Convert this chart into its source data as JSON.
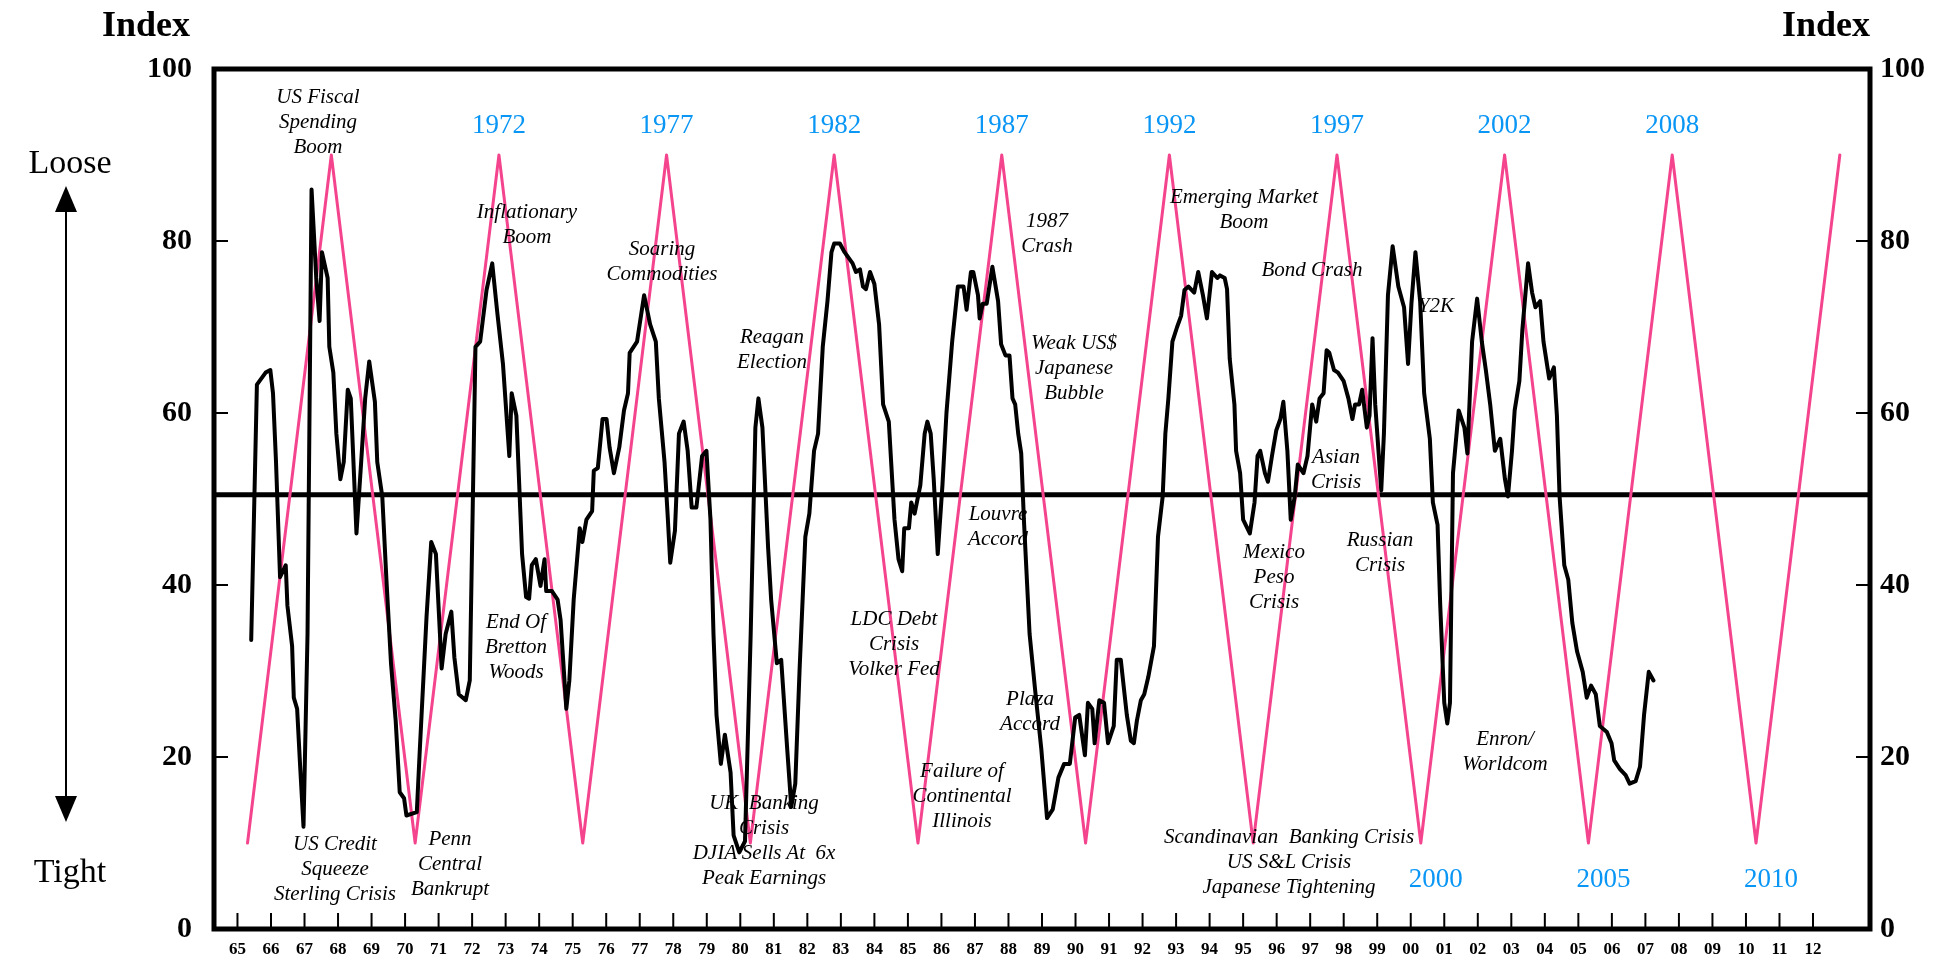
{
  "chart_data": {
    "type": "line",
    "ylabel": "Index",
    "y2label": "Index",
    "xlim": [
      1964.3,
      2013.7
    ],
    "ylim": [
      0,
      100
    ],
    "y2lim": [
      0,
      100
    ],
    "xticks": [
      {
        "value": 1965,
        "label": "65"
      },
      {
        "value": 1966,
        "label": "66"
      },
      {
        "value": 1967,
        "label": "67"
      },
      {
        "value": 1968,
        "label": "68"
      },
      {
        "value": 1969,
        "label": "69"
      },
      {
        "value": 1970,
        "label": "70"
      },
      {
        "value": 1971,
        "label": "71"
      },
      {
        "value": 1972,
        "label": "72"
      },
      {
        "value": 1973,
        "label": "73"
      },
      {
        "value": 1974,
        "label": "74"
      },
      {
        "value": 1975,
        "label": "75"
      },
      {
        "value": 1976,
        "label": "76"
      },
      {
        "value": 1977,
        "label": "77"
      },
      {
        "value": 1978,
        "label": "78"
      },
      {
        "value": 1979,
        "label": "79"
      },
      {
        "value": 1980,
        "label": "80"
      },
      {
        "value": 1981,
        "label": "81"
      },
      {
        "value": 1982,
        "label": "82"
      },
      {
        "value": 1983,
        "label": "83"
      },
      {
        "value": 1984,
        "label": "84"
      },
      {
        "value": 1985,
        "label": "85"
      },
      {
        "value": 1986,
        "label": "86"
      },
      {
        "value": 1987,
        "label": "87"
      },
      {
        "value": 1988,
        "label": "88"
      },
      {
        "value": 1989,
        "label": "89"
      },
      {
        "value": 1990,
        "label": "90"
      },
      {
        "value": 1991,
        "label": "91"
      },
      {
        "value": 1992,
        "label": "92"
      },
      {
        "value": 1993,
        "label": "93"
      },
      {
        "value": 1994,
        "label": "94"
      },
      {
        "value": 1995,
        "label": "95"
      },
      {
        "value": 1996,
        "label": "96"
      },
      {
        "value": 1997,
        "label": "97"
      },
      {
        "value": 1998,
        "label": "98"
      },
      {
        "value": 1999,
        "label": "99"
      },
      {
        "value": 2000,
        "label": "00"
      },
      {
        "value": 2001,
        "label": "01"
      },
      {
        "value": 2002,
        "label": "02"
      },
      {
        "value": 2003,
        "label": "03"
      },
      {
        "value": 2004,
        "label": "04"
      },
      {
        "value": 2005,
        "label": "05"
      },
      {
        "value": 2006,
        "label": "06"
      },
      {
        "value": 2007,
        "label": "07"
      },
      {
        "value": 2008,
        "label": "08"
      },
      {
        "value": 2009,
        "label": "09"
      },
      {
        "value": 2010,
        "label": "10"
      },
      {
        "value": 2011,
        "label": "11"
      },
      {
        "value": 2012,
        "label": "12"
      }
    ],
    "yticks": [
      0,
      20,
      40,
      60,
      80,
      100
    ],
    "y2ticks": [
      0,
      20,
      40,
      60,
      80,
      100
    ],
    "legend": false,
    "marker": "none",
    "line_style": "solid",
    "ref_lines": [
      {
        "axis": "y",
        "value": 50.5,
        "color": "#000000"
      }
    ],
    "series": [
      {
        "color": "#000000",
        "x": [
          1965.41,
          1965.58,
          1965.84,
          1965.98,
          1966.06,
          1966.15,
          1966.27,
          1966.44,
          1966.49,
          1966.63,
          1966.68,
          1966.78,
          1966.87,
          1966.97,
          1967.09,
          1967.21,
          1967.35,
          1967.45,
          1967.52,
          1967.69,
          1967.74,
          1967.86,
          1967.95,
          1968.07,
          1968.17,
          1968.29,
          1968.38,
          1968.55,
          1968.69,
          1968.81,
          1968.93,
          1969.1,
          1969.17,
          1969.32,
          1969.44,
          1969.58,
          1969.72,
          1969.84,
          1969.97,
          1970.04,
          1970.35,
          1970.44,
          1970.64,
          1970.78,
          1970.92,
          1971.04,
          1971.09,
          1971.21,
          1971.38,
          1971.47,
          1971.6,
          1971.81,
          1971.93,
          1972.1,
          1972.24,
          1972.43,
          1972.6,
          1972.75,
          1972.92,
          1973.11,
          1973.18,
          1973.32,
          1973.49,
          1973.61,
          1973.7,
          1973.78,
          1973.9,
          1974.04,
          1974.16,
          1974.21,
          1974.38,
          1974.55,
          1974.64,
          1974.81,
          1974.9,
          1975.03,
          1975.21,
          1975.29,
          1975.41,
          1975.58,
          1975.63,
          1975.75,
          1975.89,
          1976.01,
          1976.1,
          1976.23,
          1976.39,
          1976.53,
          1976.65,
          1976.7,
          1976.92,
          1977.13,
          1977.31,
          1977.48,
          1977.57,
          1977.74,
          1977.83,
          1977.91,
          1978.05,
          1978.17,
          1978.31,
          1978.43,
          1978.55,
          1978.69,
          1978.86,
          1978.99,
          1979.11,
          1979.2,
          1979.29,
          1979.42,
          1979.54,
          1979.71,
          1979.8,
          1979.97,
          1980.14,
          1980.31,
          1980.45,
          1980.54,
          1980.66,
          1980.83,
          1980.92,
          1981.09,
          1981.22,
          1981.4,
          1981.52,
          1981.64,
          1981.77,
          1981.94,
          1982.06,
          1982.2,
          1982.32,
          1982.46,
          1982.6,
          1982.72,
          1982.8,
          1982.97,
          1983.11,
          1983.35,
          1983.45,
          1983.57,
          1983.66,
          1983.75,
          1983.87,
          1984.0,
          1984.14,
          1984.26,
          1984.43,
          1984.6,
          1984.72,
          1984.83,
          1984.89,
          1985.03,
          1985.1,
          1985.2,
          1985.37,
          1985.5,
          1985.58,
          1985.68,
          1985.77,
          1985.89,
          1986.03,
          1986.15,
          1986.32,
          1986.49,
          1986.66,
          1986.75,
          1986.88,
          1986.95,
          1987.09,
          1987.14,
          1987.23,
          1987.35,
          1987.52,
          1987.69,
          1987.78,
          1987.91,
          1988.03,
          1988.12,
          1988.2,
          1988.29,
          1988.38,
          1988.46,
          1988.63,
          1988.8,
          1988.98,
          1989.15,
          1989.32,
          1989.49,
          1989.66,
          1989.83,
          1989.99,
          1990.11,
          1990.28,
          1990.37,
          1990.5,
          1990.57,
          1990.71,
          1990.85,
          1990.97,
          1991.14,
          1991.23,
          1991.35,
          1991.53,
          1991.65,
          1991.74,
          1991.83,
          1991.95,
          1992.05,
          1992.17,
          1992.34,
          1992.46,
          1992.6,
          1992.68,
          1992.77,
          1992.89,
          1993.03,
          1993.15,
          1993.25,
          1993.37,
          1993.54,
          1993.66,
          1993.8,
          1993.92,
          1994.07,
          1994.23,
          1994.31,
          1994.45,
          1994.52,
          1994.6,
          1994.74,
          1994.79,
          1994.91,
          1995.0,
          1995.2,
          1995.34,
          1995.43,
          1995.51,
          1995.65,
          1995.74,
          1995.86,
          1995.99,
          1996.11,
          1996.2,
          1996.32,
          1996.42,
          1996.54,
          1996.63,
          1996.8,
          1996.92,
          1997.06,
          1997.18,
          1997.28,
          1997.4,
          1997.49,
          1997.57,
          1997.71,
          1997.83,
          1998.0,
          1998.14,
          1998.26,
          1998.34,
          1998.46,
          1998.55,
          1998.69,
          1998.77,
          1998.86,
          1998.94,
          1999.12,
          1999.2,
          1999.32,
          1999.46,
          1999.63,
          1999.8,
          1999.92,
          2000.02,
          2000.14,
          2000.28,
          2000.4,
          2000.57,
          2000.66,
          2000.8,
          2000.88,
          2001.0,
          2001.09,
          2001.17,
          2001.26,
          2001.43,
          2001.6,
          2001.69,
          2001.83,
          2001.98,
          2002.12,
          2002.24,
          2002.37,
          2002.51,
          2002.67,
          2002.81,
          2002.9,
          2003.02,
          2003.1,
          2003.24,
          2003.33,
          2003.5,
          2003.62,
          2003.72,
          2003.86,
          2003.96,
          2004.13,
          2004.27,
          2004.36,
          2004.44,
          2004.58,
          2004.7,
          2004.82,
          2004.96,
          2005.13,
          2005.25,
          2005.38,
          2005.52,
          2005.64,
          2005.85,
          2005.99,
          2006.07,
          2006.24,
          2006.41,
          2006.53,
          2006.71,
          2006.84,
          2006.96,
          2007.1,
          2007.24
        ],
        "values": [
          33.6,
          63.3,
          64.7,
          65,
          62.3,
          54.3,
          40.9,
          42.3,
          37.6,
          32.9,
          26.9,
          25.6,
          18.9,
          11.9,
          34.3,
          86,
          75.7,
          70.7,
          78.7,
          75.7,
          67.7,
          64.7,
          57.6,
          52.3,
          54.3,
          62.7,
          61.7,
          46,
          54.3,
          61.7,
          66,
          61.3,
          54.3,
          50.3,
          40.9,
          30.9,
          24.2,
          15.9,
          15.2,
          13.2,
          13.6,
          20.9,
          36.3,
          45,
          43.6,
          34.3,
          30.3,
          34.3,
          36.9,
          31.6,
          27.3,
          26.6,
          28.9,
          67.7,
          68.3,
          74.3,
          77.4,
          71.7,
          65.7,
          55,
          62.3,
          59.7,
          43.6,
          38.6,
          38.4,
          42.3,
          43,
          39.9,
          43,
          39.3,
          39.3,
          38.3,
          35.9,
          25.6,
          28.9,
          38.3,
          46.6,
          45,
          47.6,
          48.6,
          53.3,
          53.6,
          59.3,
          59.3,
          56,
          53,
          56,
          60.3,
          62.3,
          67,
          68.3,
          73.7,
          70.3,
          68.3,
          61.7,
          54.3,
          48.3,
          42.6,
          46.3,
          57.6,
          59,
          55.6,
          49,
          49,
          55,
          55.6,
          47.6,
          34.3,
          24.9,
          19.2,
          22.6,
          18.2,
          10.9,
          8.9,
          10.2,
          34.3,
          58.3,
          61.7,
          58.3,
          44.3,
          38.3,
          30.9,
          31.3,
          20.9,
          14.2,
          16.9,
          30.3,
          45.6,
          48.3,
          55.6,
          57.6,
          67.7,
          73,
          78.7,
          79.7,
          79.7,
          78.7,
          77.4,
          76.4,
          76.7,
          74.7,
          74.4,
          76.4,
          75,
          70.3,
          61,
          59,
          47.6,
          43,
          41.6,
          46.6,
          46.6,
          49.6,
          48.3,
          51.6,
          57.6,
          59,
          57.6,
          52.3,
          43.6,
          51.6,
          60,
          68.3,
          74.7,
          74.7,
          72,
          76.4,
          76.4,
          73.7,
          71,
          72.7,
          72.7,
          77,
          73,
          68,
          66.7,
          66.7,
          61.7,
          61,
          57.6,
          55.3,
          47.6,
          34.3,
          27.6,
          20.9,
          12.9,
          13.9,
          17.6,
          19.2,
          19.2,
          24.6,
          24.9,
          20.2,
          26.3,
          25.6,
          21.6,
          26.6,
          26.3,
          21.6,
          23.6,
          31.3,
          31.3,
          24.9,
          21.9,
          21.6,
          24.2,
          26.6,
          27.3,
          29.3,
          32.9,
          45.6,
          50.3,
          57.6,
          61.7,
          68.3,
          70,
          71.3,
          74.3,
          74.7,
          74,
          76.4,
          73.7,
          71,
          76.4,
          75.7,
          76,
          75.7,
          74.4,
          66.3,
          61,
          55.6,
          53,
          47.6,
          46,
          49.6,
          55,
          55.6,
          53,
          52,
          55,
          58,
          59.3,
          61.3,
          55.6,
          47.6,
          50.3,
          54,
          53,
          55,
          61,
          59,
          61.7,
          62.3,
          67.3,
          67,
          65,
          64.7,
          63.7,
          61.7,
          59.3,
          61,
          61,
          62.7,
          58.3,
          59.7,
          68.7,
          61,
          51,
          57.6,
          73.7,
          79.4,
          74.7,
          72.3,
          65.7,
          72.7,
          78.7,
          73,
          62.3,
          57,
          49.6,
          47,
          37.6,
          26.3,
          23.9,
          26.3,
          53,
          60.3,
          58.3,
          55.3,
          68.3,
          73.3,
          68.3,
          65,
          61,
          55.6,
          57,
          52.3,
          50.3,
          55.6,
          60.3,
          63.7,
          69.7,
          77.4,
          74,
          72.3,
          73,
          68.3,
          64,
          65.3,
          59.7,
          50.3,
          42.3,
          40.6,
          35.6,
          32.3,
          29.9,
          26.9,
          28.3,
          27.3,
          23.6,
          22.9,
          21.6,
          19.6,
          18.6,
          17.9,
          16.9,
          17.2,
          18.9,
          24.9,
          29.9,
          28.9
        ]
      },
      {
        "color": "#f5448e",
        "x": [
          1965.3,
          1967.8,
          1970.3,
          1972.8,
          1975.3,
          1977.8,
          1980.3,
          1982.8,
          1985.3,
          1987.8,
          1990.3,
          1992.8,
          1995.3,
          1997.8,
          2000.3,
          2002.8,
          2005.3,
          2007.8,
          2010.3,
          2012.8
        ],
        "values": [
          10,
          90,
          10,
          90,
          10,
          90,
          10,
          90,
          10,
          90,
          10,
          90,
          10,
          90,
          10,
          90,
          10,
          90,
          10,
          90
        ]
      }
    ],
    "annotations": [
      "Loose",
      "Tight",
      "US Fiscal\nSpending\nBoom",
      "Inflationary\nBoom",
      "Soaring\nCommodities",
      "Reagan\nElection",
      "1987\nCrash",
      "Weak US$\nJapanese\nBubble",
      "Emerging Market\nBoom",
      "Bond Crash",
      "Y2K",
      "Asian\nCrisis",
      "Mexico\nPeso\nCrisis",
      "Russian\nCrisis",
      "Louvre\nAccord",
      "LDC Debt\nCrisis\nVolker Fed",
      "Plaza\nAccord",
      "Failure of\nContinental\nIllinois",
      "End Of\nBretton\nWoods",
      "US Credit\nSqueeze\nSterling Crisis",
      "Penn\nCentral\nBankrupt",
      "UK  Banking\nCrisis\nDJIA Sells At  6x\nPeak Earnings",
      "Scandinavian  Banking Crisis\nUS S&L Crisis\nJapanese Tightening",
      "Enron/\nWorldcom",
      {
        "text": "1972",
        "x": 1972.8,
        "y": 90
      },
      {
        "text": "1977",
        "x": 1977.8,
        "y": 90
      },
      {
        "text": "1982",
        "x": 1982.8,
        "y": 90
      },
      {
        "text": "1987",
        "x": 1987.8,
        "y": 90
      },
      {
        "text": "1992",
        "x": 1992.8,
        "y": 90
      },
      {
        "text": "1997",
        "x": 1997.8,
        "y": 90
      },
      {
        "text": "2002",
        "x": 2002.8,
        "y": 90
      },
      {
        "text": "2008",
        "x": 2007.8,
        "y": 90
      },
      {
        "text": "2000",
        "x": 2000.3,
        "y": 10
      },
      {
        "text": "2005",
        "x": 2005.3,
        "y": 10
      },
      {
        "text": "2010",
        "x": 2010.3,
        "y": 10
      }
    ]
  }
}
